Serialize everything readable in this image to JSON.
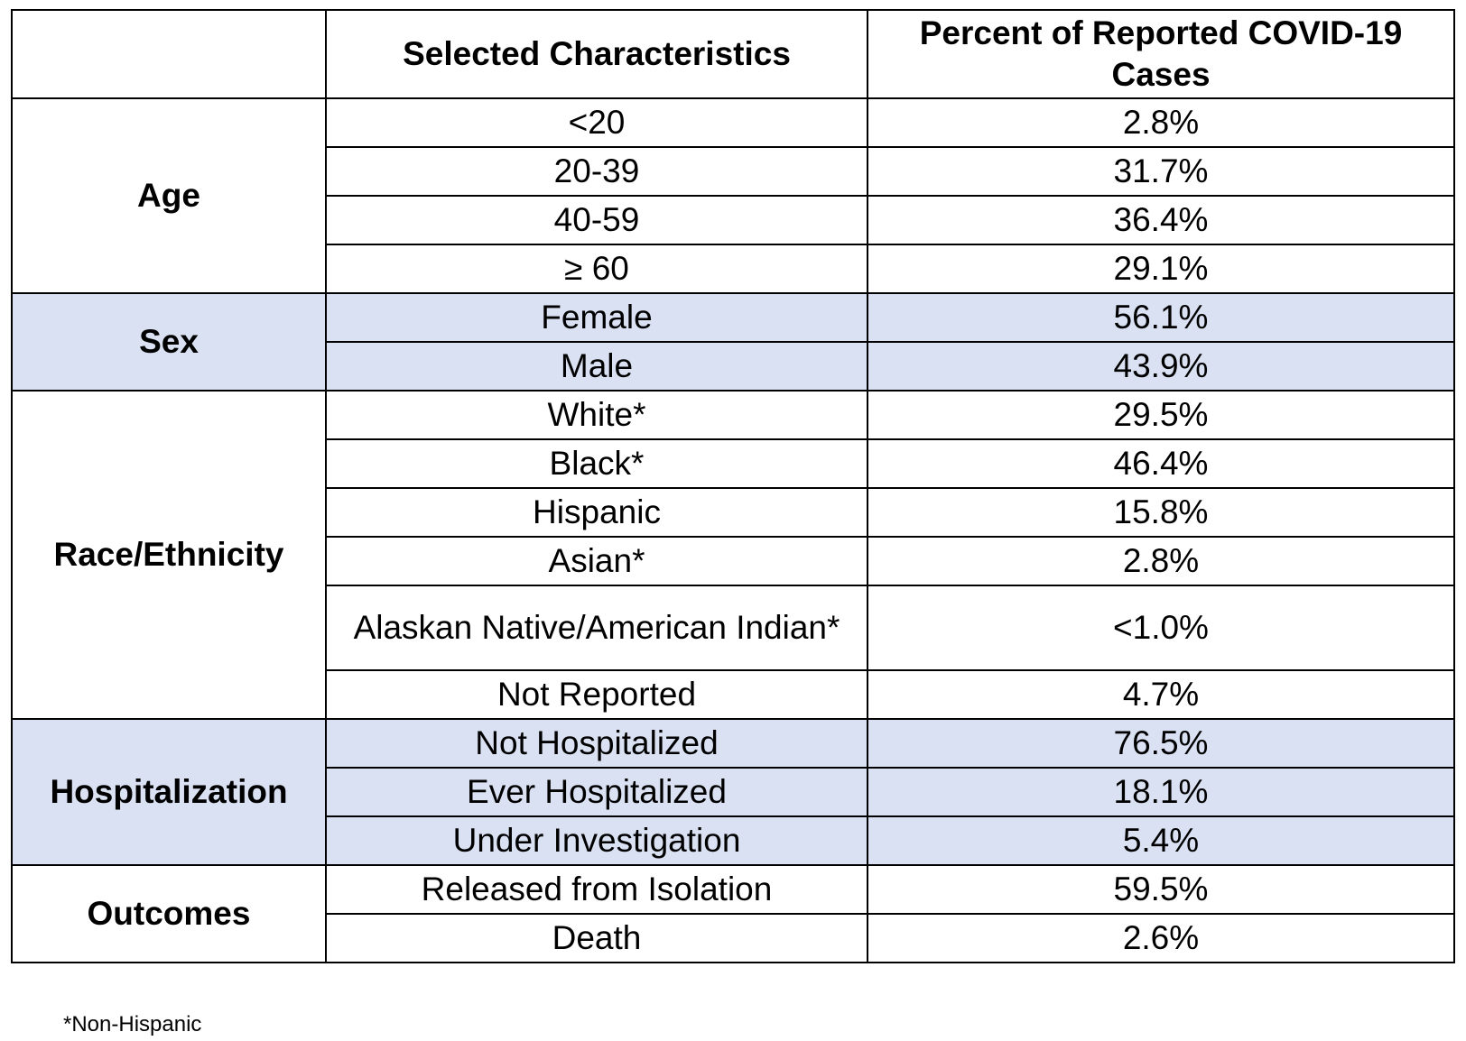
{
  "header": {
    "col1": "",
    "col2": "Selected Characteristics",
    "col3": "Percent of Reported COVID-19 Cases"
  },
  "groups": [
    {
      "category": "Age",
      "shaded": false,
      "rows": [
        {
          "characteristic": "<20",
          "percent": "2.8%"
        },
        {
          "characteristic": "20-39",
          "percent": "31.7%"
        },
        {
          "characteristic": "40-59",
          "percent": "36.4%"
        },
        {
          "characteristic": "≥ 60",
          "percent": "29.1%"
        }
      ]
    },
    {
      "category": "Sex",
      "shaded": true,
      "rows": [
        {
          "characteristic": "Female",
          "percent": "56.1%"
        },
        {
          "characteristic": "Male",
          "percent": "43.9%"
        }
      ]
    },
    {
      "category": "Race/Ethnicity",
      "shaded": false,
      "rows": [
        {
          "characteristic": "White*",
          "percent": "29.5%"
        },
        {
          "characteristic": "Black*",
          "percent": "46.4%"
        },
        {
          "characteristic": "Hispanic",
          "percent": "15.8%"
        },
        {
          "characteristic": "Asian*",
          "percent": "2.8%"
        },
        {
          "characteristic": "Alaskan Native/American Indian*",
          "percent": "<1.0%",
          "tall": true
        },
        {
          "characteristic": "Not Reported",
          "percent": "4.7%"
        }
      ]
    },
    {
      "category": "Hospitalization",
      "shaded": true,
      "rows": [
        {
          "characteristic": "Not Hospitalized",
          "percent": "76.5%"
        },
        {
          "characteristic": "Ever Hospitalized",
          "percent": "18.1%"
        },
        {
          "characteristic": "Under Investigation",
          "percent": "5.4%"
        }
      ]
    },
    {
      "category": "Outcomes",
      "shaded": false,
      "rows": [
        {
          "characteristic": "Released from Isolation",
          "percent": "59.5%"
        },
        {
          "characteristic": "Death",
          "percent": "2.6%"
        }
      ]
    }
  ],
  "colors": {
    "shaded_row": "#d9e1f2",
    "border": "#000000"
  },
  "footnote": "*Non-Hispanic"
}
